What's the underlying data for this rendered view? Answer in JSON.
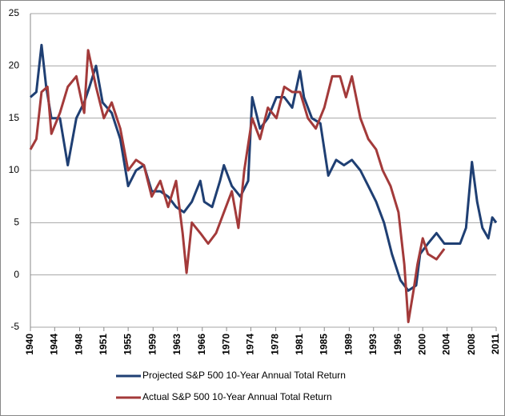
{
  "chart_data": {
    "type": "line",
    "xlim": [
      1940,
      2011
    ],
    "ylim": [
      -5,
      25
    ],
    "yticks": [
      -5,
      0,
      5,
      10,
      15,
      20,
      25
    ],
    "xticks": [
      {
        "value": 1940,
        "label": "1940"
      },
      {
        "value": 1943.7,
        "label": "1944"
      },
      {
        "value": 1947.5,
        "label": "1948"
      },
      {
        "value": 1951.2,
        "label": "1951"
      },
      {
        "value": 1954.9,
        "label": "1955"
      },
      {
        "value": 1958.7,
        "label": "1959"
      },
      {
        "value": 1962.4,
        "label": "1963"
      },
      {
        "value": 1966.2,
        "label": "1966"
      },
      {
        "value": 1969.9,
        "label": "1970"
      },
      {
        "value": 1973.6,
        "label": "1974"
      },
      {
        "value": 1977.4,
        "label": "1978"
      },
      {
        "value": 1981.1,
        "label": "1981"
      },
      {
        "value": 1984.8,
        "label": "1985"
      },
      {
        "value": 1988.6,
        "label": "1989"
      },
      {
        "value": 1992.3,
        "label": "1993"
      },
      {
        "value": 1996.1,
        "label": "1996"
      },
      {
        "value": 1999.8,
        "label": "2000"
      },
      {
        "value": 2003.5,
        "label": "2004"
      },
      {
        "value": 2007.3,
        "label": "2008"
      },
      {
        "value": 2011,
        "label": "2011"
      }
    ],
    "grid": true,
    "series": [
      {
        "name": "Projected S&P 500 10-Year Annual  Total Return",
        "color": "#1f3f73",
        "x": [
          1940.0,
          1940.9,
          1941.7,
          1942.4,
          1943.2,
          1944.5,
          1945.7,
          1947.0,
          1948.2,
          1949.0,
          1950.0,
          1951.0,
          1952.4,
          1953.7,
          1954.9,
          1956.1,
          1957.3,
          1958.5,
          1959.8,
          1961.0,
          1962.2,
          1963.4,
          1964.6,
          1965.9,
          1966.5,
          1967.7,
          1968.9,
          1969.5,
          1970.7,
          1972.0,
          1973.2,
          1973.8,
          1975.0,
          1976.2,
          1977.5,
          1978.7,
          1979.9,
          1981.1,
          1981.7,
          1982.9,
          1984.2,
          1985.4,
          1986.6,
          1987.8,
          1989.0,
          1990.3,
          1991.5,
          1992.7,
          1993.9,
          1995.1,
          1996.4,
          1997.6,
          1998.8,
          1999.4,
          2000.6,
          2001.9,
          2003.1,
          2004.3,
          2005.5,
          2006.4,
          2007.3,
          2008.1,
          2008.9,
          2009.8,
          2010.4,
          2011.0
        ],
        "values": [
          17,
          17.5,
          22,
          18,
          15,
          15,
          10.5,
          15,
          16.5,
          18,
          20,
          16.5,
          15.5,
          13,
          8.5,
          10,
          10.5,
          8,
          8,
          7.5,
          6.5,
          6,
          7,
          9,
          7,
          6.5,
          9,
          10.5,
          8.5,
          7.5,
          9,
          17,
          14,
          15,
          17,
          17,
          16,
          19.5,
          17,
          15,
          14.5,
          9.5,
          11,
          10.5,
          11,
          10,
          8.5,
          7,
          5,
          2,
          -0.5,
          -1.5,
          -1,
          2,
          3,
          4,
          3,
          3,
          3,
          4.5,
          10.8,
          7,
          4.5,
          3.5,
          5.5,
          5
        ]
      },
      {
        "name": "Actual S&P 500 10-Year Annual  Total Return",
        "color": "#a33a3a",
        "x": [
          1940.0,
          1940.9,
          1941.7,
          1942.6,
          1943.2,
          1944.5,
          1945.7,
          1947.0,
          1948.2,
          1948.8,
          1950.0,
          1951.2,
          1952.4,
          1953.7,
          1954.9,
          1956.1,
          1957.3,
          1958.5,
          1959.8,
          1961.0,
          1962.2,
          1963.2,
          1963.8,
          1964.6,
          1965.9,
          1967.1,
          1968.3,
          1969.5,
          1970.7,
          1971.7,
          1972.6,
          1973.8,
          1975.0,
          1976.2,
          1977.5,
          1978.7,
          1979.9,
          1981.1,
          1982.3,
          1983.5,
          1984.8,
          1986.0,
          1987.2,
          1988.1,
          1989.0,
          1990.3,
          1991.5,
          1992.7,
          1993.7,
          1994.9,
          1996.1,
          1997.0,
          1997.6,
          1998.4,
          1999.0,
          1999.8,
          2000.6,
          2001.9,
          2003.1
        ],
        "values": [
          12,
          13,
          17.5,
          18,
          13.5,
          15.5,
          18,
          19,
          15.5,
          21.5,
          18,
          15,
          16.5,
          14,
          10,
          11,
          10.5,
          7.5,
          9,
          6.5,
          9,
          4,
          0.2,
          5,
          4,
          3,
          4,
          6,
          8,
          4.5,
          10,
          15,
          13,
          16,
          15,
          18,
          17.5,
          17.5,
          15,
          14,
          16,
          19,
          19,
          17,
          19,
          15,
          13,
          12,
          10,
          8.5,
          6,
          1,
          -4.5,
          -1.5,
          1,
          3.5,
          2,
          1.5,
          2.5
        ]
      }
    ]
  }
}
